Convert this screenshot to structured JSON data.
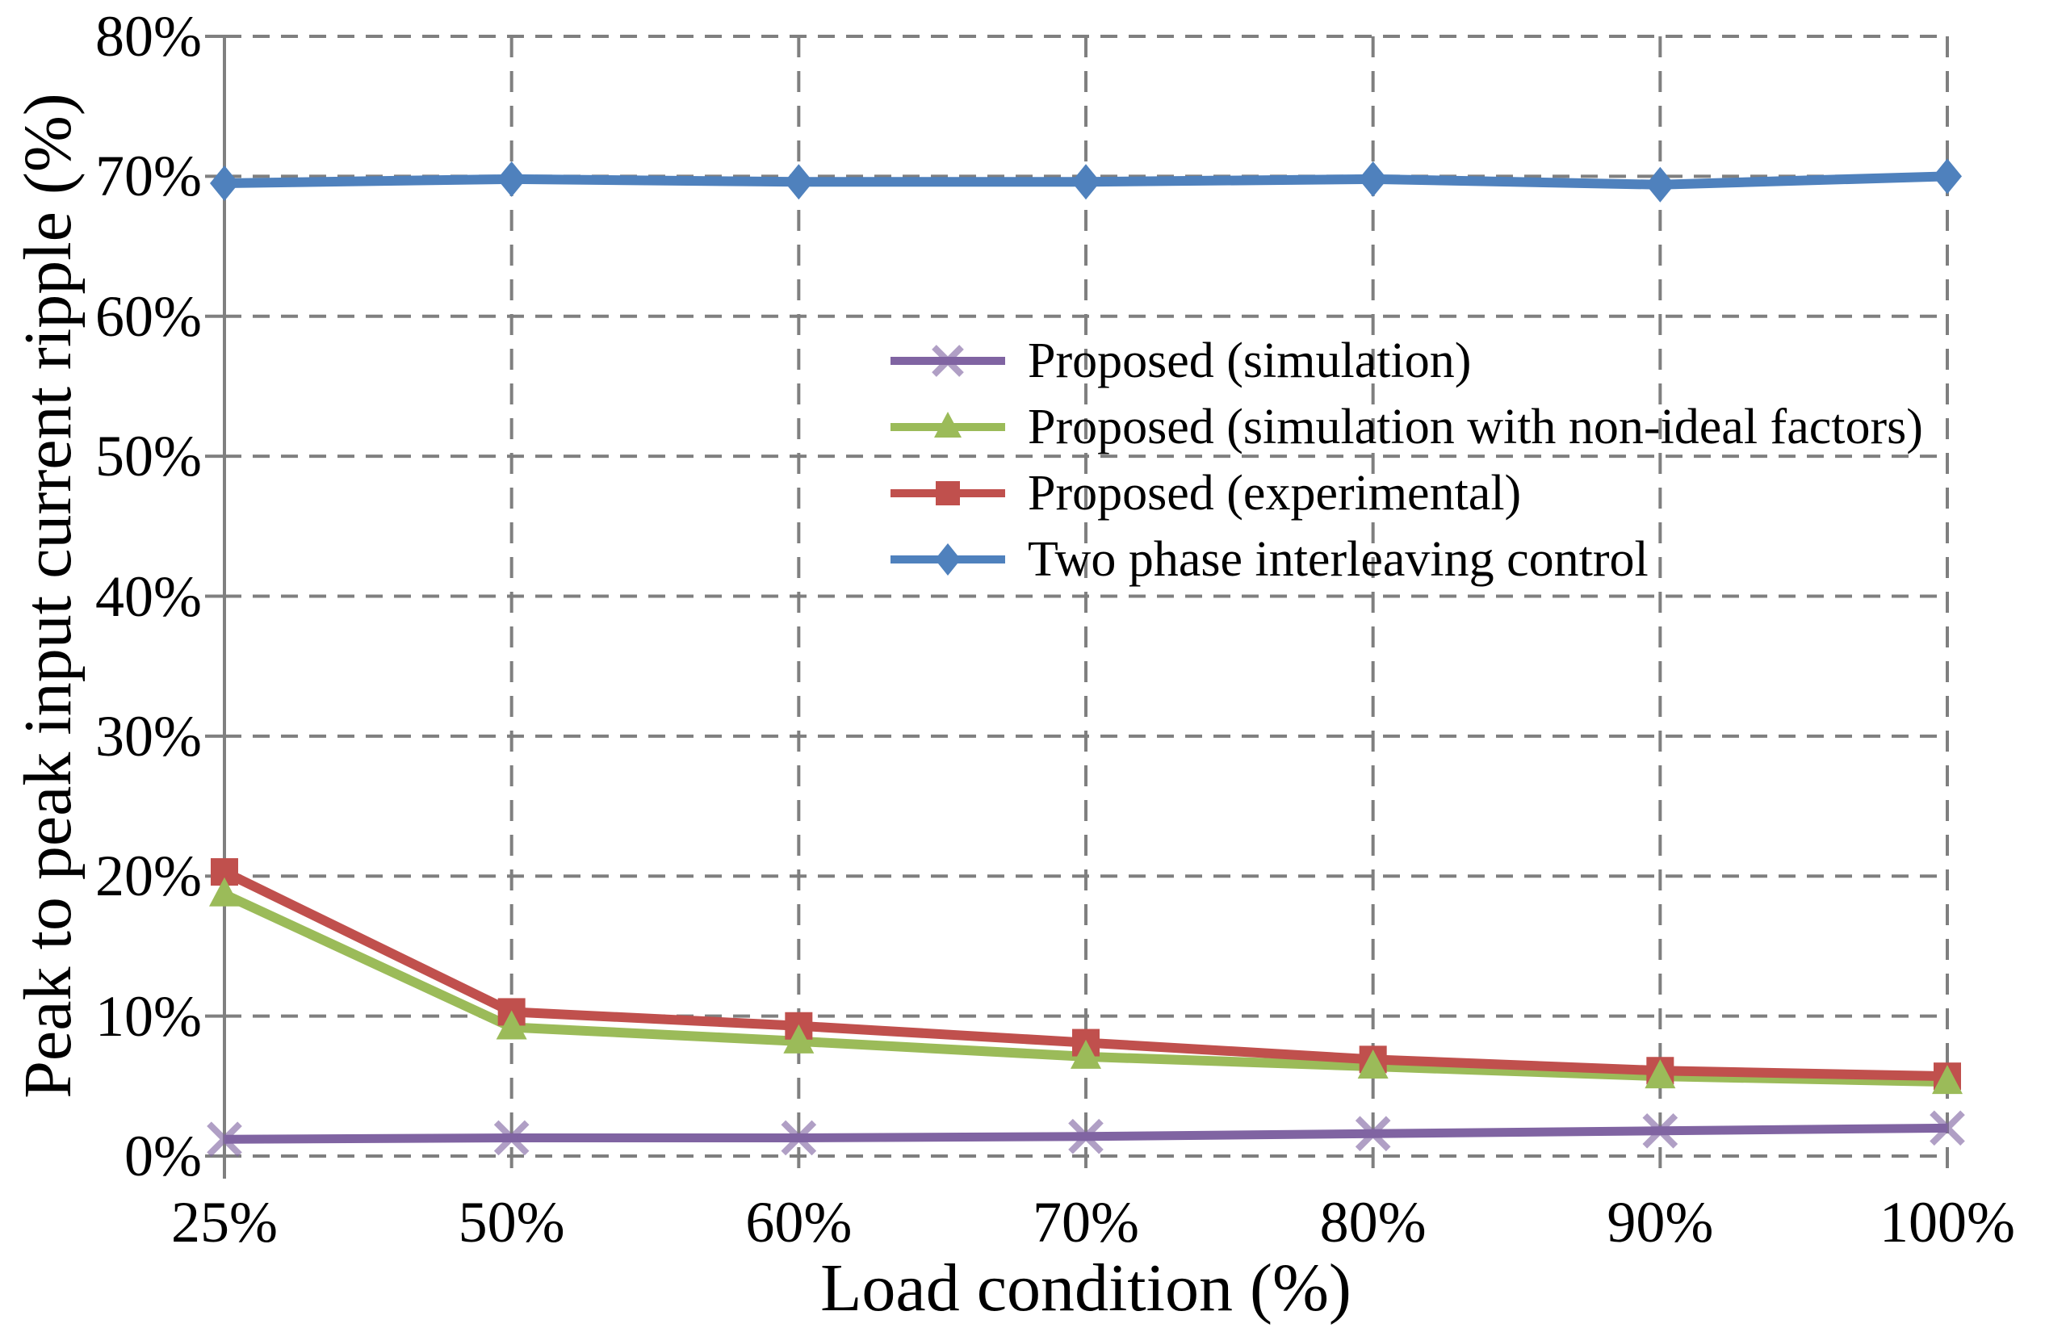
{
  "figure": {
    "background": "#ffffff",
    "y_axis": {
      "title": "Peak to peak input current ripple (%)",
      "tick_labels": [
        "0%",
        "10%",
        "20%",
        "30%",
        "40%",
        "50%",
        "60%",
        "70%",
        "80%"
      ]
    },
    "x_axis": {
      "title": "Load condition (%)",
      "tick_labels": [
        "25%",
        "50%",
        "60%",
        "70%",
        "80%",
        "90%",
        "100%"
      ]
    }
  },
  "chart_data": {
    "type": "line",
    "title": "",
    "xlabel": "Load condition (%)",
    "ylabel": "Peak to peak input current ripple (%)",
    "categories": [
      "25%",
      "50%",
      "60%",
      "70%",
      "80%",
      "90%",
      "100%"
    ],
    "ylim": [
      0,
      80
    ],
    "y_tick_step": 10,
    "y_tick_labels": [
      "0%",
      "10%",
      "20%",
      "30%",
      "40%",
      "50%",
      "60%",
      "70%",
      "80%"
    ],
    "grid": "dashed",
    "legend_position": "inside-upper-middle",
    "series": [
      {
        "name": "Proposed (simulation)",
        "color": "#8064A2",
        "marker": "x",
        "values": [
          1.2,
          1.3,
          1.3,
          1.4,
          1.6,
          1.8,
          2.0
        ]
      },
      {
        "name": "Proposed (simulation with non-ideal factors)",
        "color": "#9BBB59",
        "marker": "triangle",
        "values": [
          18.7,
          9.2,
          8.2,
          7.1,
          6.4,
          5.7,
          5.3
        ]
      },
      {
        "name": "Proposed (experimental)",
        "color": "#C0504D",
        "marker": "square",
        "values": [
          20.3,
          10.3,
          9.3,
          8.1,
          6.9,
          6.1,
          5.7
        ]
      },
      {
        "name": "Two phase interleaving control",
        "color": "#4F81BD",
        "marker": "diamond",
        "values": [
          69.5,
          69.8,
          69.6,
          69.6,
          69.8,
          69.4,
          70.0
        ]
      }
    ],
    "colors": {
      "grid": "#7f7f7f",
      "axis": "#808080",
      "text": "#000000"
    }
  }
}
